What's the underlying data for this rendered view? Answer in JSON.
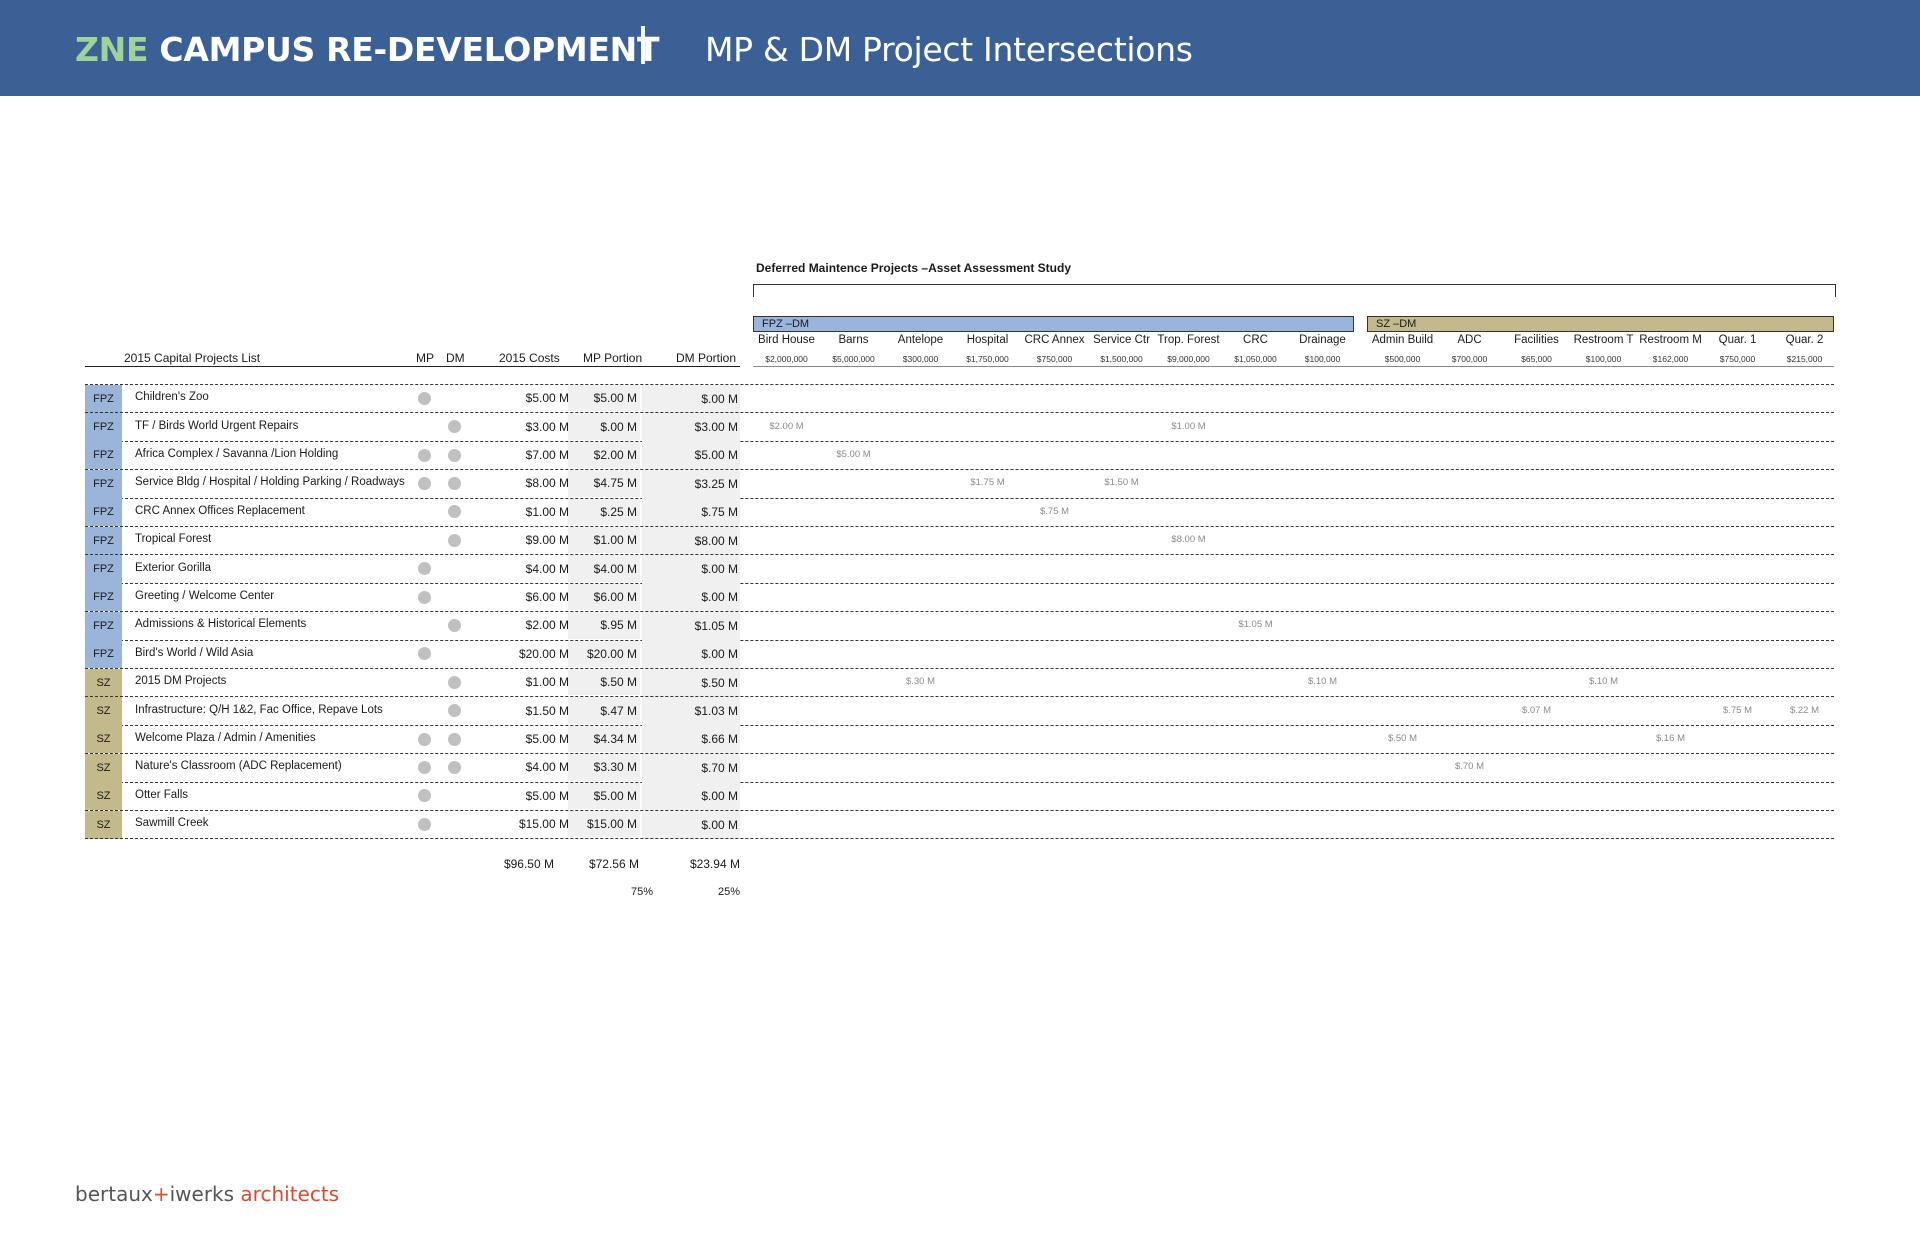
{
  "banner": {
    "title_prefix": "ZNE",
    "title_main": "CAMPUS RE-DEVELOPMENT",
    "separator": "|",
    "subtitle": "MP & DM Project Intersections"
  },
  "dm_section": {
    "title": "Deferred Maintence Projects –Asset Assessment Study",
    "groups": [
      {
        "label": "FPZ –DM",
        "color": "#9ab4da"
      },
      {
        "label": "SZ –DM",
        "color": "#c4b98a"
      }
    ],
    "projects": [
      {
        "name": "Bird House",
        "cost": "$2,000,000"
      },
      {
        "name": "Barns",
        "cost": "$5,000,000"
      },
      {
        "name": "Antelope",
        "cost": "$300,000"
      },
      {
        "name": "Hospital",
        "cost": "$1,750,000"
      },
      {
        "name": "CRC Annex",
        "cost": "$750,000"
      },
      {
        "name": "Service Ctr",
        "cost": "$1,500,000"
      },
      {
        "name": "Trop. Forest",
        "cost": "$9,000,000"
      },
      {
        "name": "CRC",
        "cost": "$1,050,000"
      },
      {
        "name": "Drainage",
        "cost": "$100,000"
      },
      {
        "name": "Admin Build",
        "cost": "$500,000"
      },
      {
        "name": "ADC",
        "cost": "$700,000"
      },
      {
        "name": "Facilities",
        "cost": "$65,000"
      },
      {
        "name": "Restroom T",
        "cost": "$100,000"
      },
      {
        "name": "Restroom M",
        "cost": "$162,000"
      },
      {
        "name": "Quar. 1",
        "cost": "$750,000"
      },
      {
        "name": "Quar. 2",
        "cost": "$215,000"
      }
    ]
  },
  "headers": {
    "list": "2015 Capital Projects List",
    "mp": "MP",
    "dm": "DM",
    "cost": "2015 Costs",
    "mp_portion": "MP Portion",
    "dm_portion": "DM Portion"
  },
  "rows": [
    {
      "zone": "FPZ",
      "name": "Children's Zoo",
      "mp": true,
      "dm": false,
      "cost": "$5.00 M",
      "mp_portion": "$5.00 M",
      "dm_portion": "$.00 M",
      "cells": []
    },
    {
      "zone": "FPZ",
      "name": "TF / Birds World Urgent Repairs",
      "mp": false,
      "dm": true,
      "cost": "$3.00 M",
      "mp_portion": "$.00 M",
      "dm_portion": "$3.00 M",
      "cells": [
        {
          "col": 0,
          "text": "$2.00 M"
        },
        {
          "col": 6,
          "text": "$1.00 M"
        }
      ]
    },
    {
      "zone": "FPZ",
      "name": "Africa Complex / Savanna /Lion Holding",
      "mp": true,
      "dm": true,
      "cost": "$7.00 M",
      "mp_portion": "$2.00 M",
      "dm_portion": "$5.00 M",
      "cells": [
        {
          "col": 1,
          "text": "$5.00 M"
        }
      ]
    },
    {
      "zone": "FPZ",
      "name": "Service Bldg / Hospital / Holding Parking / Roadways",
      "mp": true,
      "dm": true,
      "cost": "$8.00 M",
      "mp_portion": "$4.75 M",
      "dm_portion": "$3.25 M",
      "cells": [
        {
          "col": 3,
          "text": "$1.75 M"
        },
        {
          "col": 5,
          "text": "$1.50 M"
        }
      ]
    },
    {
      "zone": "FPZ",
      "name": "CRC Annex Offices Replacement",
      "mp": false,
      "dm": true,
      "cost": "$1.00 M",
      "mp_portion": "$.25 M",
      "dm_portion": "$.75 M",
      "cells": [
        {
          "col": 4,
          "text": "$.75 M"
        }
      ]
    },
    {
      "zone": "FPZ",
      "name": "Tropical Forest",
      "mp": false,
      "dm": true,
      "cost": "$9.00 M",
      "mp_portion": "$1.00 M",
      "dm_portion": "$8.00 M",
      "cells": [
        {
          "col": 6,
          "text": "$8.00 M"
        }
      ]
    },
    {
      "zone": "FPZ",
      "name": "Exterior Gorilla",
      "mp": true,
      "dm": false,
      "cost": "$4.00 M",
      "mp_portion": "$4.00 M",
      "dm_portion": "$.00 M",
      "cells": []
    },
    {
      "zone": "FPZ",
      "name": "Greeting / Welcome Center",
      "mp": true,
      "dm": false,
      "cost": "$6.00 M",
      "mp_portion": "$6.00 M",
      "dm_portion": "$.00 M",
      "cells": []
    },
    {
      "zone": "FPZ",
      "name": "Admissions & Historical Elements",
      "mp": false,
      "dm": true,
      "cost": "$2.00 M",
      "mp_portion": "$.95 M",
      "dm_portion": "$1.05 M",
      "cells": [
        {
          "col": 7,
          "text": "$1.05 M"
        }
      ]
    },
    {
      "zone": "FPZ",
      "name": "Bird's World / Wild Asia",
      "mp": true,
      "dm": false,
      "cost": "$20.00 M",
      "mp_portion": "$20.00 M",
      "dm_portion": "$.00 M",
      "cells": []
    },
    {
      "zone": "SZ",
      "name": "2015 DM Projects",
      "mp": false,
      "dm": true,
      "cost": "$1.00 M",
      "mp_portion": "$.50 M",
      "dm_portion": "$.50 M",
      "cells": [
        {
          "col": 2,
          "text": "$.30 M"
        },
        {
          "col": 8,
          "text": "$.10 M"
        },
        {
          "col": 12,
          "text": "$.10 M"
        }
      ]
    },
    {
      "zone": "SZ",
      "name": "Infrastructure: Q/H 1&2, Fac Office, Repave Lots",
      "mp": false,
      "dm": true,
      "cost": "$1.50 M",
      "mp_portion": "$.47 M",
      "dm_portion": "$1.03 M",
      "cells": [
        {
          "col": 11,
          "text": "$.07 M"
        },
        {
          "col": 14,
          "text": "$.75 M"
        },
        {
          "col": 15,
          "text": "$.22 M"
        }
      ]
    },
    {
      "zone": "SZ",
      "name": "Welcome Plaza / Admin / Amenities",
      "mp": true,
      "dm": true,
      "cost": "$5.00 M",
      "mp_portion": "$4.34 M",
      "dm_portion": "$.66 M",
      "cells": [
        {
          "col": 9,
          "text": "$.50 M"
        },
        {
          "col": 13,
          "text": "$.16 M"
        }
      ]
    },
    {
      "zone": "SZ",
      "name": "Nature's Classroom  (ADC Replacement)",
      "mp": true,
      "dm": true,
      "cost": "$4.00 M",
      "mp_portion": "$3.30 M",
      "dm_portion": "$.70 M",
      "cells": [
        {
          "col": 10,
          "text": "$.70 M"
        }
      ]
    },
    {
      "zone": "SZ",
      "name": "Otter Falls",
      "mp": true,
      "dm": false,
      "cost": "$5.00 M",
      "mp_portion": "$5.00 M",
      "dm_portion": "$.00 M",
      "cells": []
    },
    {
      "zone": "SZ",
      "name": "Sawmill Creek",
      "mp": true,
      "dm": false,
      "cost": "$15.00 M",
      "mp_portion": "$15.00 M",
      "dm_portion": "$.00 M",
      "cells": []
    }
  ],
  "totals": {
    "cost": "$96.50 M",
    "mp_portion": "$72.56 M",
    "dm_portion": "$23.94 M",
    "mp_pct": "75%",
    "dm_pct": "25%"
  },
  "footer": {
    "logo_a": "bertaux",
    "logo_plus": "+",
    "logo_b": "iwerks",
    "logo_c": "architects"
  },
  "colors": {
    "banner": "#3a6095",
    "fpz": "#9ab4da",
    "sz": "#c4b98a",
    "accent_red": "#e0492c",
    "title_green": "#9fd39a"
  }
}
